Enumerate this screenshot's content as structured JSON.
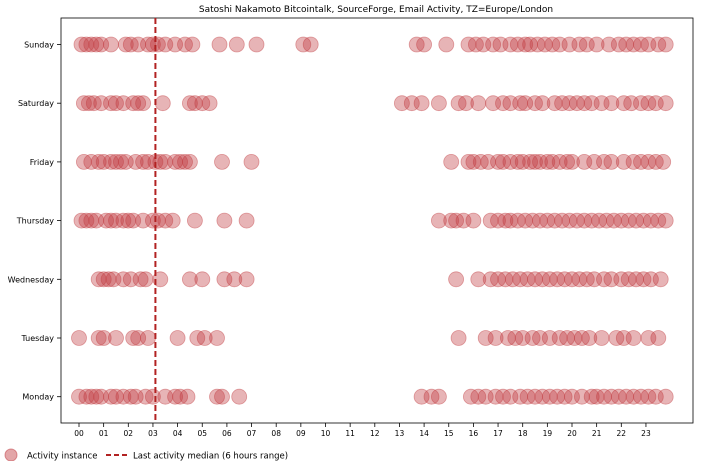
{
  "chart_data": {
    "type": "scatter",
    "title": "Satoshi Nakamoto Bitcointalk, SourceForge, Email Activity, TZ=Europe/London",
    "x_ticks": [
      "00",
      "01",
      "02",
      "03",
      "04",
      "05",
      "06",
      "07",
      "08",
      "09",
      "10",
      "11",
      "12",
      "13",
      "14",
      "15",
      "16",
      "17",
      "18",
      "19",
      "20",
      "21",
      "22",
      "23"
    ],
    "y_categories": [
      "Sunday",
      "Saturday",
      "Friday",
      "Thursday",
      "Wednesday",
      "Tuesday",
      "Monday"
    ],
    "xlim": [
      -0.5,
      24.0
    ],
    "grid": false,
    "legend_position": "bottom-left",
    "marker_color": "#c0393f",
    "line_color": "#b22222",
    "median_line_x": 3.1,
    "legend": {
      "marker_label": "Activity instance",
      "line_label": "Last activity median (6 hours range)"
    },
    "series": [
      {
        "day": "Sunday",
        "hours": [
          0.1,
          0.3,
          0.5,
          0.7,
          0.9,
          1.3,
          1.9,
          2.1,
          2.4,
          2.8,
          3.0,
          3.2,
          3.5,
          3.9,
          4.3,
          4.6,
          5.7,
          6.4,
          7.2,
          9.1,
          9.4,
          13.7,
          14.0,
          14.9,
          15.8,
          16.1,
          16.4,
          16.8,
          17.1,
          17.5,
          17.8,
          18.1,
          18.3,
          18.6,
          18.9,
          19.2,
          19.5,
          19.9,
          20.3,
          20.6,
          21.0,
          21.5,
          21.9,
          22.2,
          22.5,
          22.8,
          23.1,
          23.5,
          23.8
        ]
      },
      {
        "day": "Saturday",
        "hours": [
          0.2,
          0.4,
          0.6,
          0.9,
          1.3,
          1.5,
          1.8,
          2.2,
          2.4,
          2.6,
          3.4,
          4.5,
          4.7,
          5.0,
          5.3,
          13.1,
          13.5,
          13.9,
          14.6,
          15.4,
          15.7,
          16.2,
          16.8,
          17.2,
          17.5,
          17.9,
          18.1,
          18.5,
          18.8,
          19.3,
          19.6,
          19.9,
          20.2,
          20.5,
          20.8,
          21.2,
          21.6,
          22.1,
          22.4,
          22.8,
          23.1,
          23.4,
          23.8
        ]
      },
      {
        "day": "Friday",
        "hours": [
          0.2,
          0.5,
          0.8,
          1.0,
          1.3,
          1.5,
          1.7,
          1.9,
          2.3,
          2.6,
          2.8,
          3.1,
          3.3,
          3.5,
          3.9,
          4.1,
          4.3,
          4.5,
          5.8,
          7.0,
          15.1,
          15.8,
          16.0,
          16.3,
          16.6,
          17.0,
          17.2,
          17.5,
          17.8,
          18.0,
          18.3,
          18.5,
          18.7,
          19.0,
          19.2,
          19.5,
          19.8,
          20.0,
          20.5,
          20.9,
          21.3,
          21.6,
          22.1,
          22.5,
          22.8,
          23.1,
          23.4,
          23.7
        ]
      },
      {
        "day": "Thursday",
        "hours": [
          0.1,
          0.3,
          0.5,
          0.7,
          1.1,
          1.3,
          1.5,
          1.8,
          2.0,
          2.2,
          2.6,
          3.0,
          3.2,
          3.5,
          3.8,
          4.7,
          5.9,
          6.8,
          14.6,
          15.1,
          15.3,
          15.6,
          16.0,
          16.7,
          17.0,
          17.3,
          17.5,
          17.8,
          18.1,
          18.4,
          18.7,
          19.0,
          19.3,
          19.6,
          19.9,
          20.2,
          20.5,
          20.8,
          21.1,
          21.4,
          21.7,
          22.0,
          22.3,
          22.6,
          22.9,
          23.2,
          23.5,
          23.8
        ]
      },
      {
        "day": "Wednesday",
        "hours": [
          0.8,
          1.0,
          1.2,
          1.4,
          1.8,
          2.1,
          2.5,
          2.7,
          3.3,
          4.5,
          5.0,
          5.9,
          6.3,
          6.8,
          15.3,
          16.2,
          16.7,
          17.0,
          17.3,
          17.6,
          17.9,
          18.2,
          18.5,
          18.8,
          19.1,
          19.4,
          19.7,
          20.0,
          20.3,
          20.6,
          20.9,
          21.3,
          21.6,
          22.0,
          22.3,
          22.6,
          22.9,
          23.2,
          23.6
        ]
      },
      {
        "day": "Tuesday",
        "hours": [
          0.0,
          0.8,
          1.0,
          1.5,
          2.2,
          2.4,
          2.8,
          4.0,
          4.8,
          5.1,
          5.6,
          15.4,
          16.5,
          16.9,
          17.4,
          17.7,
          18.0,
          18.4,
          18.7,
          19.1,
          19.5,
          19.8,
          20.1,
          20.4,
          20.7,
          21.2,
          21.8,
          22.1,
          22.5,
          23.1,
          23.5
        ]
      },
      {
        "day": "Monday",
        "hours": [
          0.0,
          0.3,
          0.5,
          0.7,
          0.9,
          1.3,
          1.5,
          1.8,
          2.1,
          2.3,
          2.7,
          3.0,
          3.5,
          3.9,
          4.1,
          4.4,
          5.6,
          5.8,
          6.5,
          13.9,
          14.3,
          14.6,
          15.9,
          16.2,
          16.5,
          16.9,
          17.2,
          17.5,
          17.9,
          18.2,
          18.5,
          18.8,
          19.1,
          19.4,
          19.7,
          20.0,
          20.4,
          20.8,
          21.0,
          21.3,
          21.6,
          21.9,
          22.2,
          22.5,
          22.8,
          23.1,
          23.4,
          23.8
        ]
      }
    ]
  }
}
